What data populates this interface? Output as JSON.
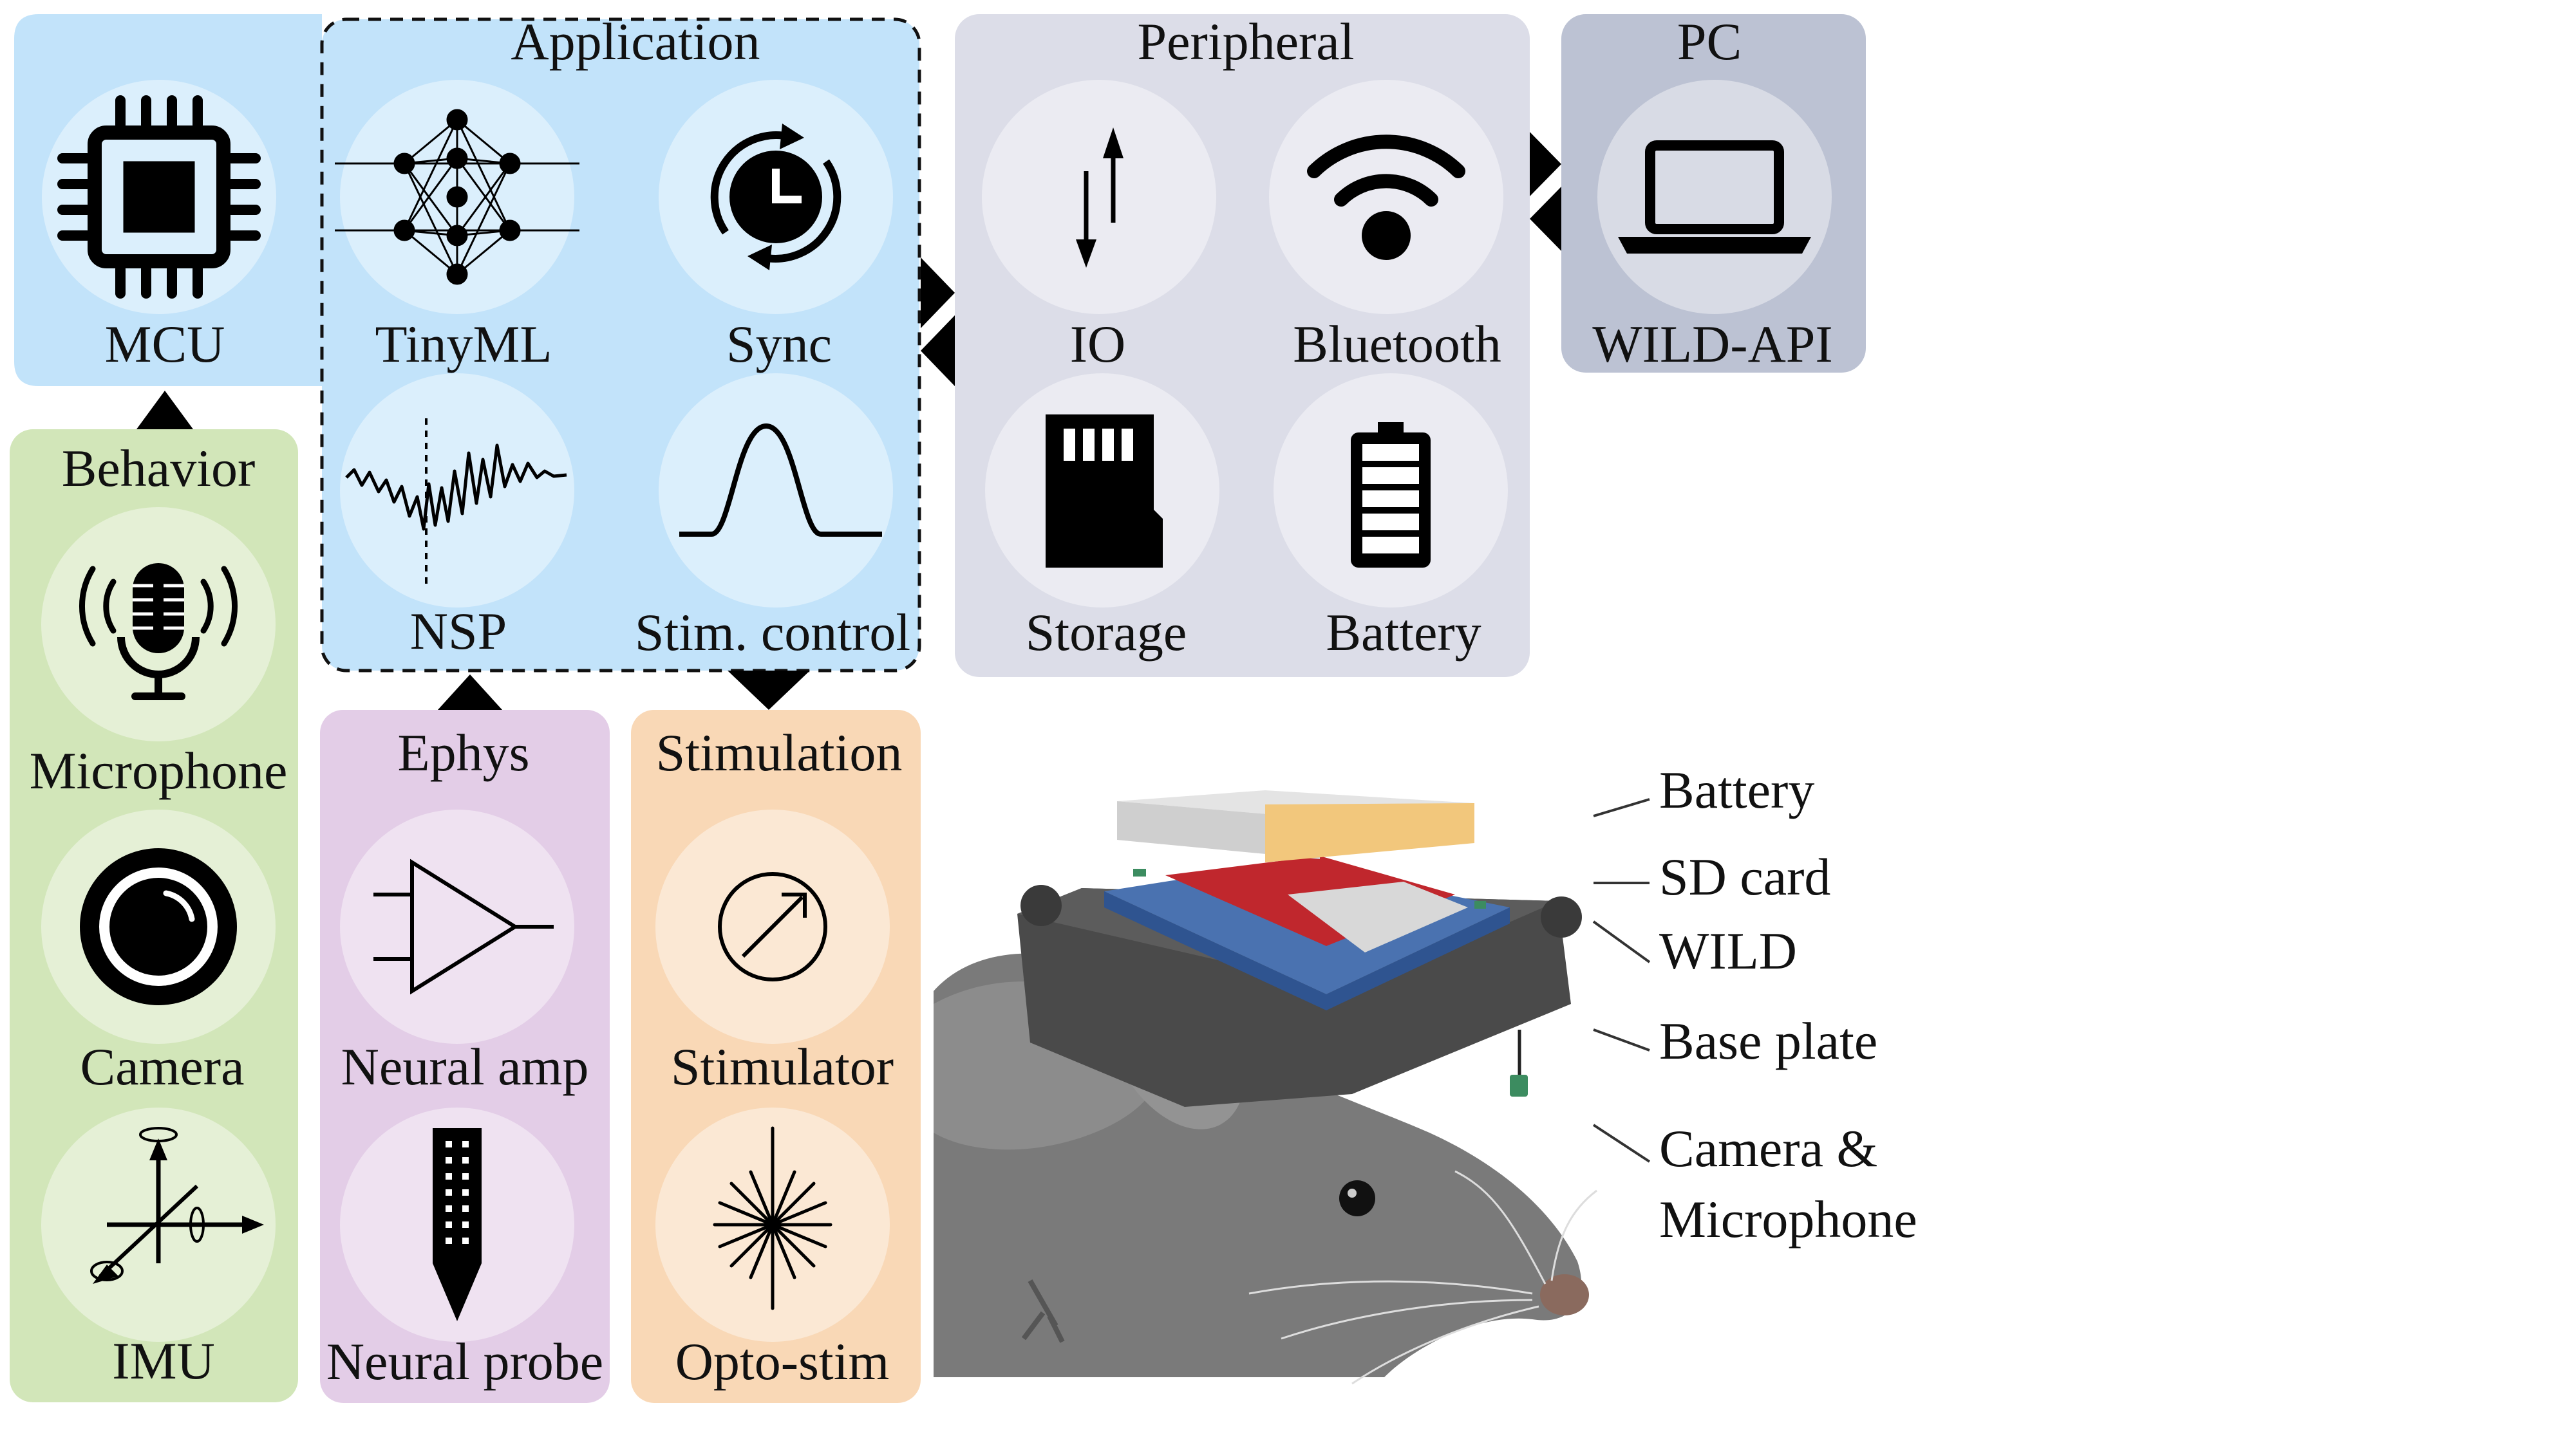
{
  "colors": {
    "mcu_panel": "#c2e3fa",
    "application_panel": "#c2e3fa",
    "peripheral_panel": "#dcdde8",
    "pc_panel": "#bcc2d3",
    "behavior_panel": "#d2e6b9",
    "ephys_panel": "#e3cde7",
    "stimulation_panel": "#f9d8b6",
    "arrows": "#000000",
    "callout_battery": "#808080",
    "callout_sdcard": "#c0272d",
    "callout_wild": "#4a72b0",
    "callout_baseplate": "#555555",
    "callout_camera": "#3c8c60"
  },
  "mcu": {
    "label": "MCU",
    "icon": "chip-icon"
  },
  "application": {
    "title": "Application",
    "items": [
      {
        "label": "TinyML",
        "icon": "neural-network-icon"
      },
      {
        "label": "Sync",
        "icon": "clock-sync-icon"
      },
      {
        "label": "NSP",
        "icon": "neural-signal-icon"
      },
      {
        "label": "Stim. control",
        "icon": "pulse-waveform-icon"
      }
    ]
  },
  "peripheral": {
    "title": "Peripheral",
    "items": [
      {
        "label": "IO",
        "icon": "io-arrows-icon"
      },
      {
        "label": "Bluetooth",
        "icon": "wireless-icon"
      },
      {
        "label": "Storage",
        "icon": "sd-card-icon"
      },
      {
        "label": "Battery",
        "icon": "battery-icon"
      }
    ]
  },
  "pc": {
    "title": "PC",
    "label": "WILD-API",
    "icon": "laptop-icon"
  },
  "behavior": {
    "title": "Behavior",
    "items": [
      {
        "label": "Microphone",
        "icon": "microphone-icon"
      },
      {
        "label": "Camera",
        "icon": "camera-lens-icon"
      },
      {
        "label": "IMU",
        "icon": "imu-axes-icon"
      }
    ]
  },
  "ephys": {
    "title": "Ephys",
    "items": [
      {
        "label": "Neural amp",
        "icon": "amplifier-icon"
      },
      {
        "label": "Neural probe",
        "icon": "neural-probe-icon"
      }
    ]
  },
  "stimulation": {
    "title": "Stimulation",
    "items": [
      {
        "label": "Stimulator",
        "icon": "stimulator-icon"
      },
      {
        "label": "Opto-stim",
        "icon": "light-burst-icon"
      }
    ]
  },
  "callouts": {
    "battery": "Battery",
    "sd_card": "SD card",
    "wild": "WILD",
    "base_plate": "Base plate",
    "camera_line1": "Camera &",
    "camera_line2": "Microphone"
  }
}
